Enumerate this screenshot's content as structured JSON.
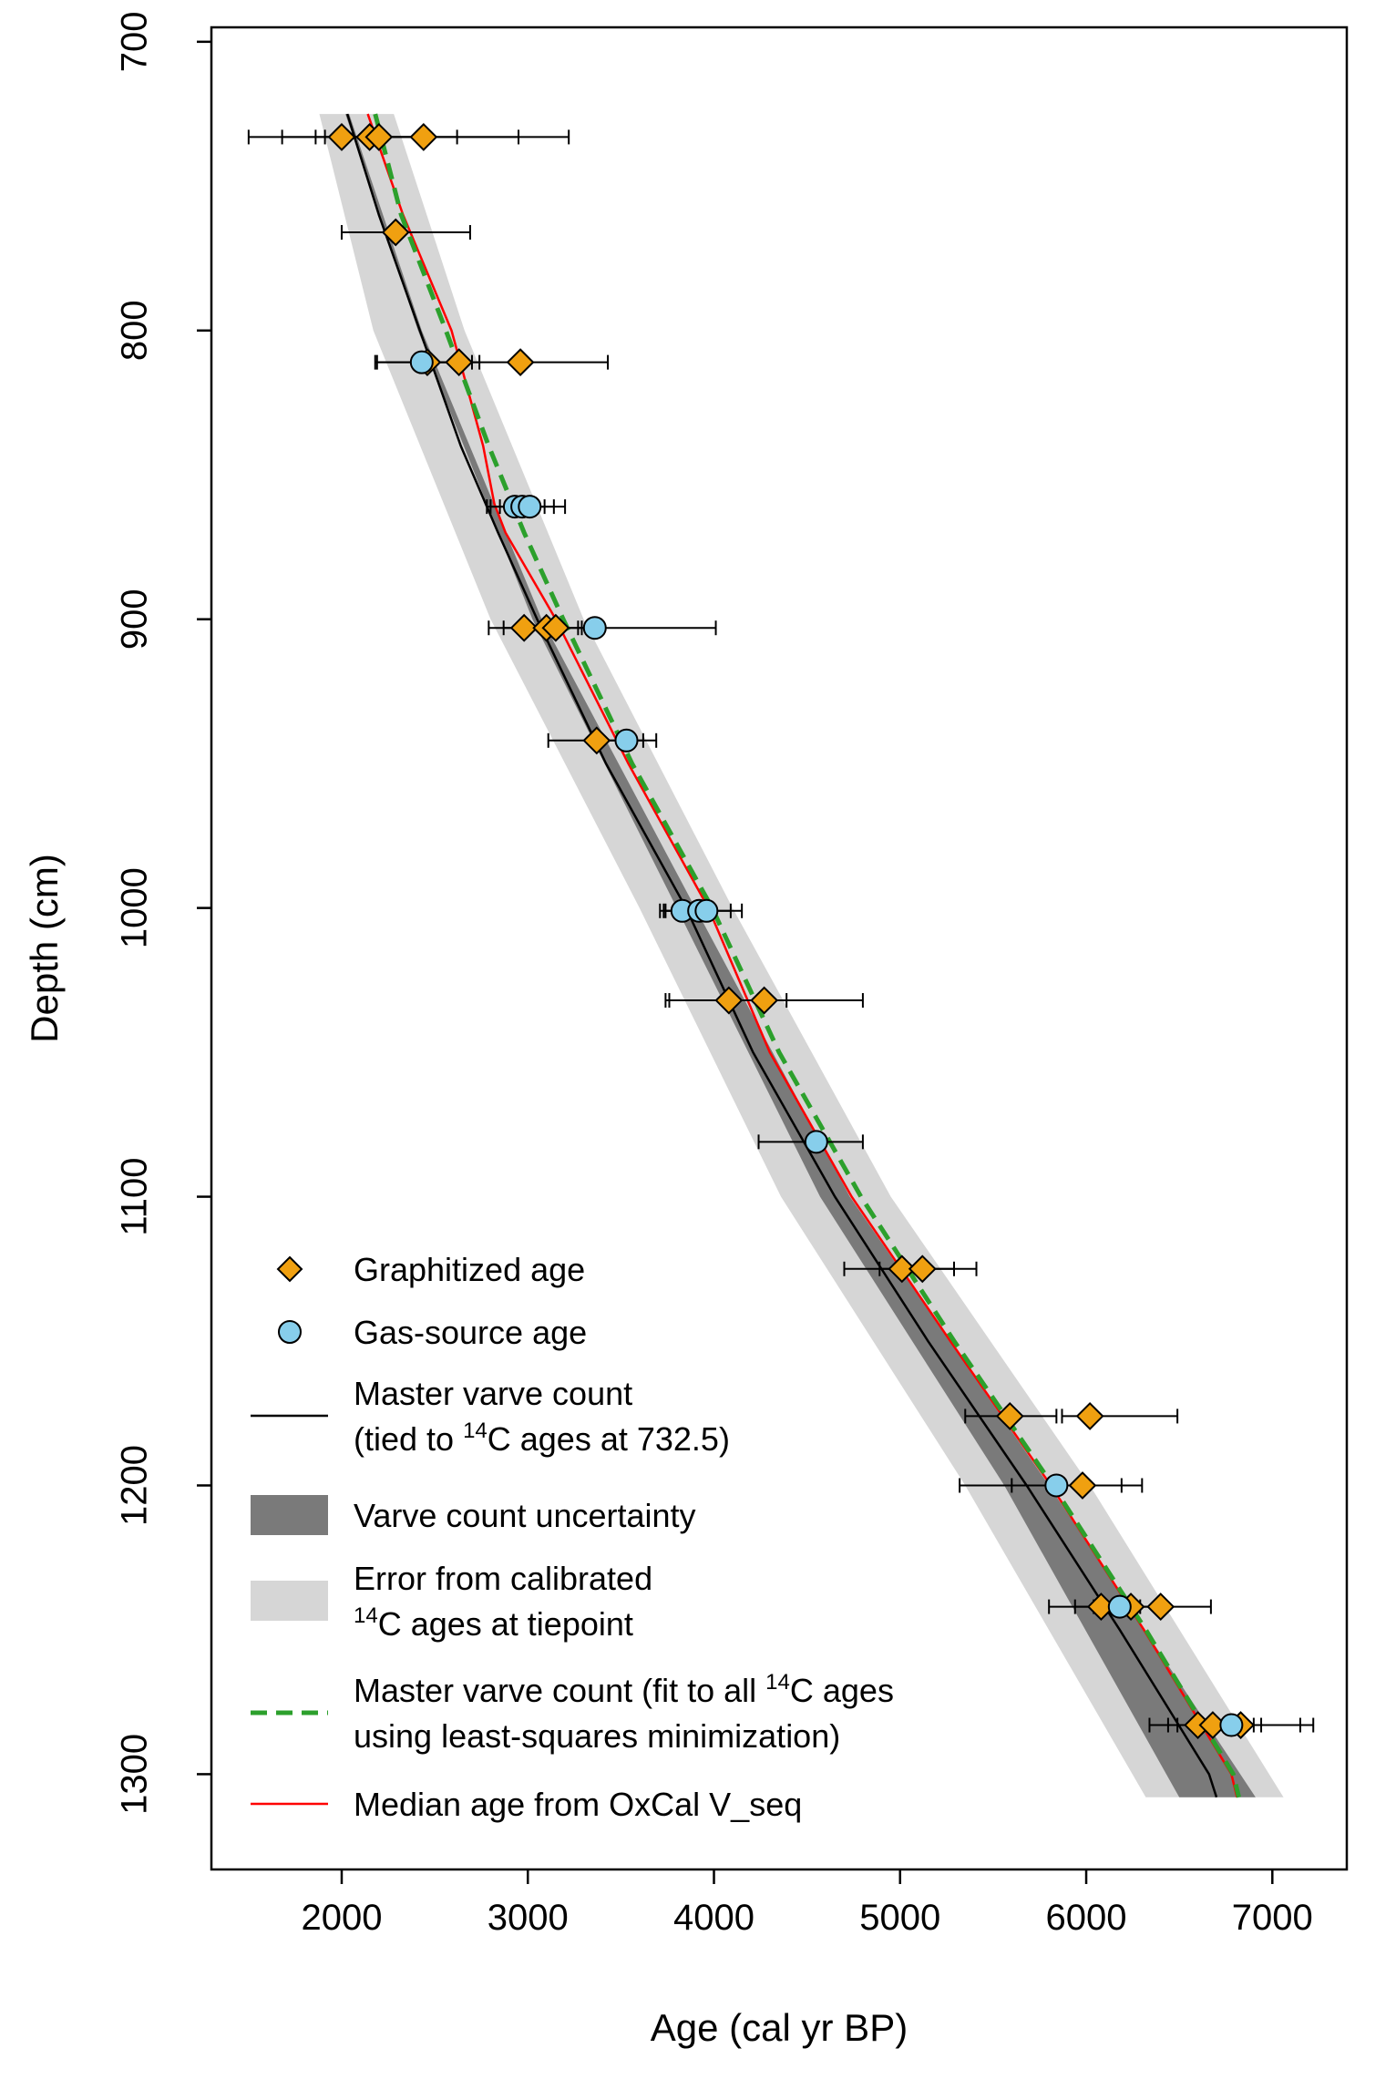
{
  "chart_data": {
    "type": "scatter",
    "xlabel": "Age (cal yr BP)",
    "ylabel": "Depth (cm)",
    "xlim": [
      1300,
      7400
    ],
    "ylim": [
      1333,
      695
    ],
    "y_reversed": true,
    "grid": false,
    "legend_position": "bottom-left",
    "xticks": [
      "2000",
      "3000",
      "4000",
      "5000",
      "6000",
      "7000"
    ],
    "yticks": [
      "700",
      "800",
      "900",
      "1000",
      "1100",
      "1200",
      "1300"
    ],
    "colors": {
      "graphitized": "#f0a010",
      "gas_source": "#87ceeb",
      "master_varve": "#000000",
      "varve_uncertainty": "#7a7a7a",
      "calibrated_error": "#d6d6d6",
      "least_squares": "#2ca02c",
      "oxcal": "#ff0000"
    },
    "legend": [
      {
        "key": "graphitized",
        "symbol": "diamond",
        "lines": [
          "Graphitized age"
        ]
      },
      {
        "key": "gas_source",
        "symbol": "circle",
        "lines": [
          "Gas-source age"
        ]
      },
      {
        "key": "master_varve",
        "symbol": "line",
        "lines": [
          "Master varve count",
          "(tied to ",
          "14",
          "C ages at 732.5)"
        ]
      },
      {
        "key": "varve_uncertainty",
        "symbol": "band-dark",
        "lines": [
          "Varve count uncertainty"
        ]
      },
      {
        "key": "calibrated_error",
        "symbol": "band-light",
        "lines": [
          "Error from calibrated",
          "14",
          "C ages at tiepoint"
        ]
      },
      {
        "key": "least_squares",
        "symbol": "dashed",
        "lines": [
          "Master varve count (fit to all ",
          "14",
          "C ages",
          "using least-squares minimization)"
        ]
      },
      {
        "key": "oxcal",
        "symbol": "redline",
        "lines": [
          "Median age from OxCal V_seq"
        ]
      }
    ],
    "series": [
      {
        "key": "graphitized",
        "points": [
          {
            "depth": 733,
            "age": 2000,
            "err_low": 1500,
            "err_high": 2430
          },
          {
            "depth": 733,
            "age": 2150,
            "err_low": 1680,
            "err_high": 2620
          },
          {
            "depth": 733,
            "age": 2200,
            "err_low": 1860,
            "err_high": 2950
          },
          {
            "depth": 733,
            "age": 2440,
            "err_low": 1910,
            "err_high": 3220
          },
          {
            "depth": 766,
            "age": 2290,
            "err_low": 2000,
            "err_high": 2690
          },
          {
            "depth": 811,
            "age": 2460,
            "err_low": 2190,
            "err_high": 2700
          },
          {
            "depth": 811,
            "age": 2630,
            "err_low": 2430,
            "err_high": 2740
          },
          {
            "depth": 811,
            "age": 2960,
            "err_low": 2480,
            "err_high": 3430
          },
          {
            "depth": 903,
            "age": 2980,
            "err_low": 2790,
            "err_high": 3160
          },
          {
            "depth": 903,
            "age": 3100,
            "err_low": 2870,
            "err_high": 3290
          },
          {
            "depth": 903,
            "age": 3150,
            "err_low": 3000,
            "err_high": 3330
          },
          {
            "depth": 942,
            "age": 3370,
            "err_low": 3110,
            "err_high": 3620
          },
          {
            "depth": 1032,
            "age": 4080,
            "err_low": 3740,
            "err_high": 4390
          },
          {
            "depth": 1032,
            "age": 4270,
            "err_low": 3760,
            "err_high": 4800
          },
          {
            "depth": 1125,
            "age": 5010,
            "err_low": 4700,
            "err_high": 5290
          },
          {
            "depth": 1125,
            "age": 5120,
            "err_low": 4890,
            "err_high": 5410
          },
          {
            "depth": 1176,
            "age": 5590,
            "err_low": 5350,
            "err_high": 5840
          },
          {
            "depth": 1176,
            "age": 6020,
            "err_low": 5870,
            "err_high": 6490
          },
          {
            "depth": 1200,
            "age": 5980,
            "err_low": 5600,
            "err_high": 6300
          },
          {
            "depth": 1242,
            "age": 6080,
            "err_low": 5800,
            "err_high": 6260
          },
          {
            "depth": 1242,
            "age": 6240,
            "err_low": 5940,
            "err_high": 6390
          },
          {
            "depth": 1242,
            "age": 6400,
            "err_low": 6150,
            "err_high": 6670
          },
          {
            "depth": 1283,
            "age": 6600,
            "err_low": 6340,
            "err_high": 6900
          },
          {
            "depth": 1283,
            "age": 6680,
            "err_low": 6440,
            "err_high": 6940
          },
          {
            "depth": 1283,
            "age": 6830,
            "err_low": 6490,
            "err_high": 7220
          }
        ]
      },
      {
        "key": "gas_source",
        "points": [
          {
            "depth": 811,
            "age": 2430,
            "err_low": 2180,
            "err_high": 2640
          },
          {
            "depth": 861,
            "age": 2930,
            "err_low": 2780,
            "err_high": 3090
          },
          {
            "depth": 861,
            "age": 2970,
            "err_low": 2800,
            "err_high": 3140
          },
          {
            "depth": 861,
            "age": 3010,
            "err_low": 2850,
            "err_high": 3200
          },
          {
            "depth": 903,
            "age": 3360,
            "err_low": 3270,
            "err_high": 4010
          },
          {
            "depth": 942,
            "age": 3530,
            "err_low": 3360,
            "err_high": 3690
          },
          {
            "depth": 1001,
            "age": 3830,
            "err_low": 3710,
            "err_high": 3960
          },
          {
            "depth": 1001,
            "age": 3920,
            "err_low": 3730,
            "err_high": 4090
          },
          {
            "depth": 1001,
            "age": 3960,
            "err_low": 3740,
            "err_high": 4150
          },
          {
            "depth": 1081,
            "age": 4550,
            "err_low": 4240,
            "err_high": 4800
          },
          {
            "depth": 1200,
            "age": 5840,
            "err_low": 5320,
            "err_high": 6190
          },
          {
            "depth": 1242,
            "age": 6180,
            "err_low": 6040,
            "err_high": 6290
          },
          {
            "depth": 1283,
            "age": 6780,
            "err_low": 6580,
            "err_high": 7150
          }
        ]
      },
      {
        "key": "master_varve",
        "points": [
          {
            "depth": 725,
            "age": 2030
          },
          {
            "depth": 760,
            "age": 2200
          },
          {
            "depth": 800,
            "age": 2420
          },
          {
            "depth": 840,
            "age": 2640
          },
          {
            "depth": 870,
            "age": 2840
          },
          {
            "depth": 900,
            "age": 3050
          },
          {
            "depth": 950,
            "age": 3420
          },
          {
            "depth": 1000,
            "age": 3850
          },
          {
            "depth": 1050,
            "age": 4210
          },
          {
            "depth": 1100,
            "age": 4650
          },
          {
            "depth": 1150,
            "age": 5150
          },
          {
            "depth": 1200,
            "age": 5680
          },
          {
            "depth": 1250,
            "age": 6180
          },
          {
            "depth": 1300,
            "age": 6660
          },
          {
            "depth": 1308,
            "age": 6700
          }
        ]
      },
      {
        "key": "varve_uncertainty",
        "upper": [
          {
            "depth": 725,
            "age": 2040
          },
          {
            "depth": 800,
            "age": 2430
          },
          {
            "depth": 900,
            "age": 3075
          },
          {
            "depth": 1000,
            "age": 3900
          },
          {
            "depth": 1100,
            "age": 4730
          },
          {
            "depth": 1200,
            "age": 5800
          },
          {
            "depth": 1308,
            "age": 6910
          }
        ],
        "lower": [
          {
            "depth": 725,
            "age": 2020
          },
          {
            "depth": 800,
            "age": 2410
          },
          {
            "depth": 900,
            "age": 3025
          },
          {
            "depth": 1000,
            "age": 3800
          },
          {
            "depth": 1100,
            "age": 4570
          },
          {
            "depth": 1200,
            "age": 5560
          },
          {
            "depth": 1308,
            "age": 6500
          }
        ]
      },
      {
        "key": "calibrated_error",
        "upper": [
          {
            "depth": 725,
            "age": 2280
          },
          {
            "depth": 800,
            "age": 2660
          },
          {
            "depth": 900,
            "age": 3300
          },
          {
            "depth": 1000,
            "age": 4100
          },
          {
            "depth": 1100,
            "age": 4950
          },
          {
            "depth": 1200,
            "age": 6020
          },
          {
            "depth": 1308,
            "age": 7060
          }
        ],
        "lower": [
          {
            "depth": 725,
            "age": 1880
          },
          {
            "depth": 800,
            "age": 2170
          },
          {
            "depth": 900,
            "age": 2800
          },
          {
            "depth": 1000,
            "age": 3600
          },
          {
            "depth": 1100,
            "age": 4360
          },
          {
            "depth": 1200,
            "age": 5350
          },
          {
            "depth": 1308,
            "age": 6320
          }
        ]
      },
      {
        "key": "least_squares",
        "points": [
          {
            "depth": 725,
            "age": 2180
          },
          {
            "depth": 760,
            "age": 2320
          },
          {
            "depth": 800,
            "age": 2560
          },
          {
            "depth": 840,
            "age": 2790
          },
          {
            "depth": 870,
            "age": 2980
          },
          {
            "depth": 900,
            "age": 3190
          },
          {
            "depth": 950,
            "age": 3560
          },
          {
            "depth": 1000,
            "age": 3990
          },
          {
            "depth": 1050,
            "age": 4350
          },
          {
            "depth": 1100,
            "age": 4790
          },
          {
            "depth": 1150,
            "age": 5290
          },
          {
            "depth": 1200,
            "age": 5820
          },
          {
            "depth": 1250,
            "age": 6320
          },
          {
            "depth": 1300,
            "age": 6790
          },
          {
            "depth": 1308,
            "age": 6820
          }
        ]
      },
      {
        "key": "oxcal",
        "points": [
          {
            "depth": 725,
            "age": 2140
          },
          {
            "depth": 760,
            "age": 2330
          },
          {
            "depth": 800,
            "age": 2590
          },
          {
            "depth": 840,
            "age": 2760
          },
          {
            "depth": 860,
            "age": 2820
          },
          {
            "depth": 870,
            "age": 2880
          },
          {
            "depth": 900,
            "age": 3150
          },
          {
            "depth": 950,
            "age": 3540
          },
          {
            "depth": 1000,
            "age": 3970
          },
          {
            "depth": 1050,
            "age": 4300
          },
          {
            "depth": 1100,
            "age": 4740
          },
          {
            "depth": 1150,
            "age": 5270
          },
          {
            "depth": 1200,
            "age": 5810
          },
          {
            "depth": 1250,
            "age": 6310
          },
          {
            "depth": 1300,
            "age": 6780
          },
          {
            "depth": 1308,
            "age": 6810
          }
        ]
      }
    ]
  }
}
